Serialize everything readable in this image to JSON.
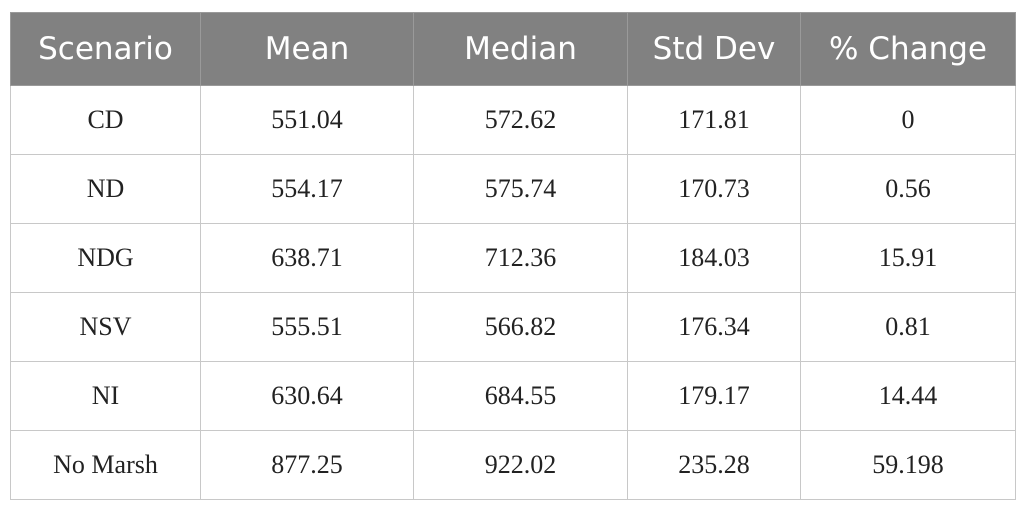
{
  "table": {
    "header": [
      "Scenario",
      "Mean",
      "Median",
      "Std Dev",
      "% Change"
    ],
    "rows": [
      [
        "CD",
        "551.04",
        "572.62",
        "171.81",
        "0"
      ],
      [
        "ND",
        "554.17",
        "575.74",
        "170.73",
        "0.56"
      ],
      [
        "NDG",
        "638.71",
        "712.36",
        "184.03",
        "15.91"
      ],
      [
        "NSV",
        "555.51",
        "566.82",
        "176.34",
        "0.81"
      ],
      [
        "NI",
        "630.64",
        "684.55",
        "179.17",
        "14.44"
      ],
      [
        "No Marsh",
        "877.25",
        "922.02",
        "235.28",
        "59.198"
      ]
    ]
  }
}
